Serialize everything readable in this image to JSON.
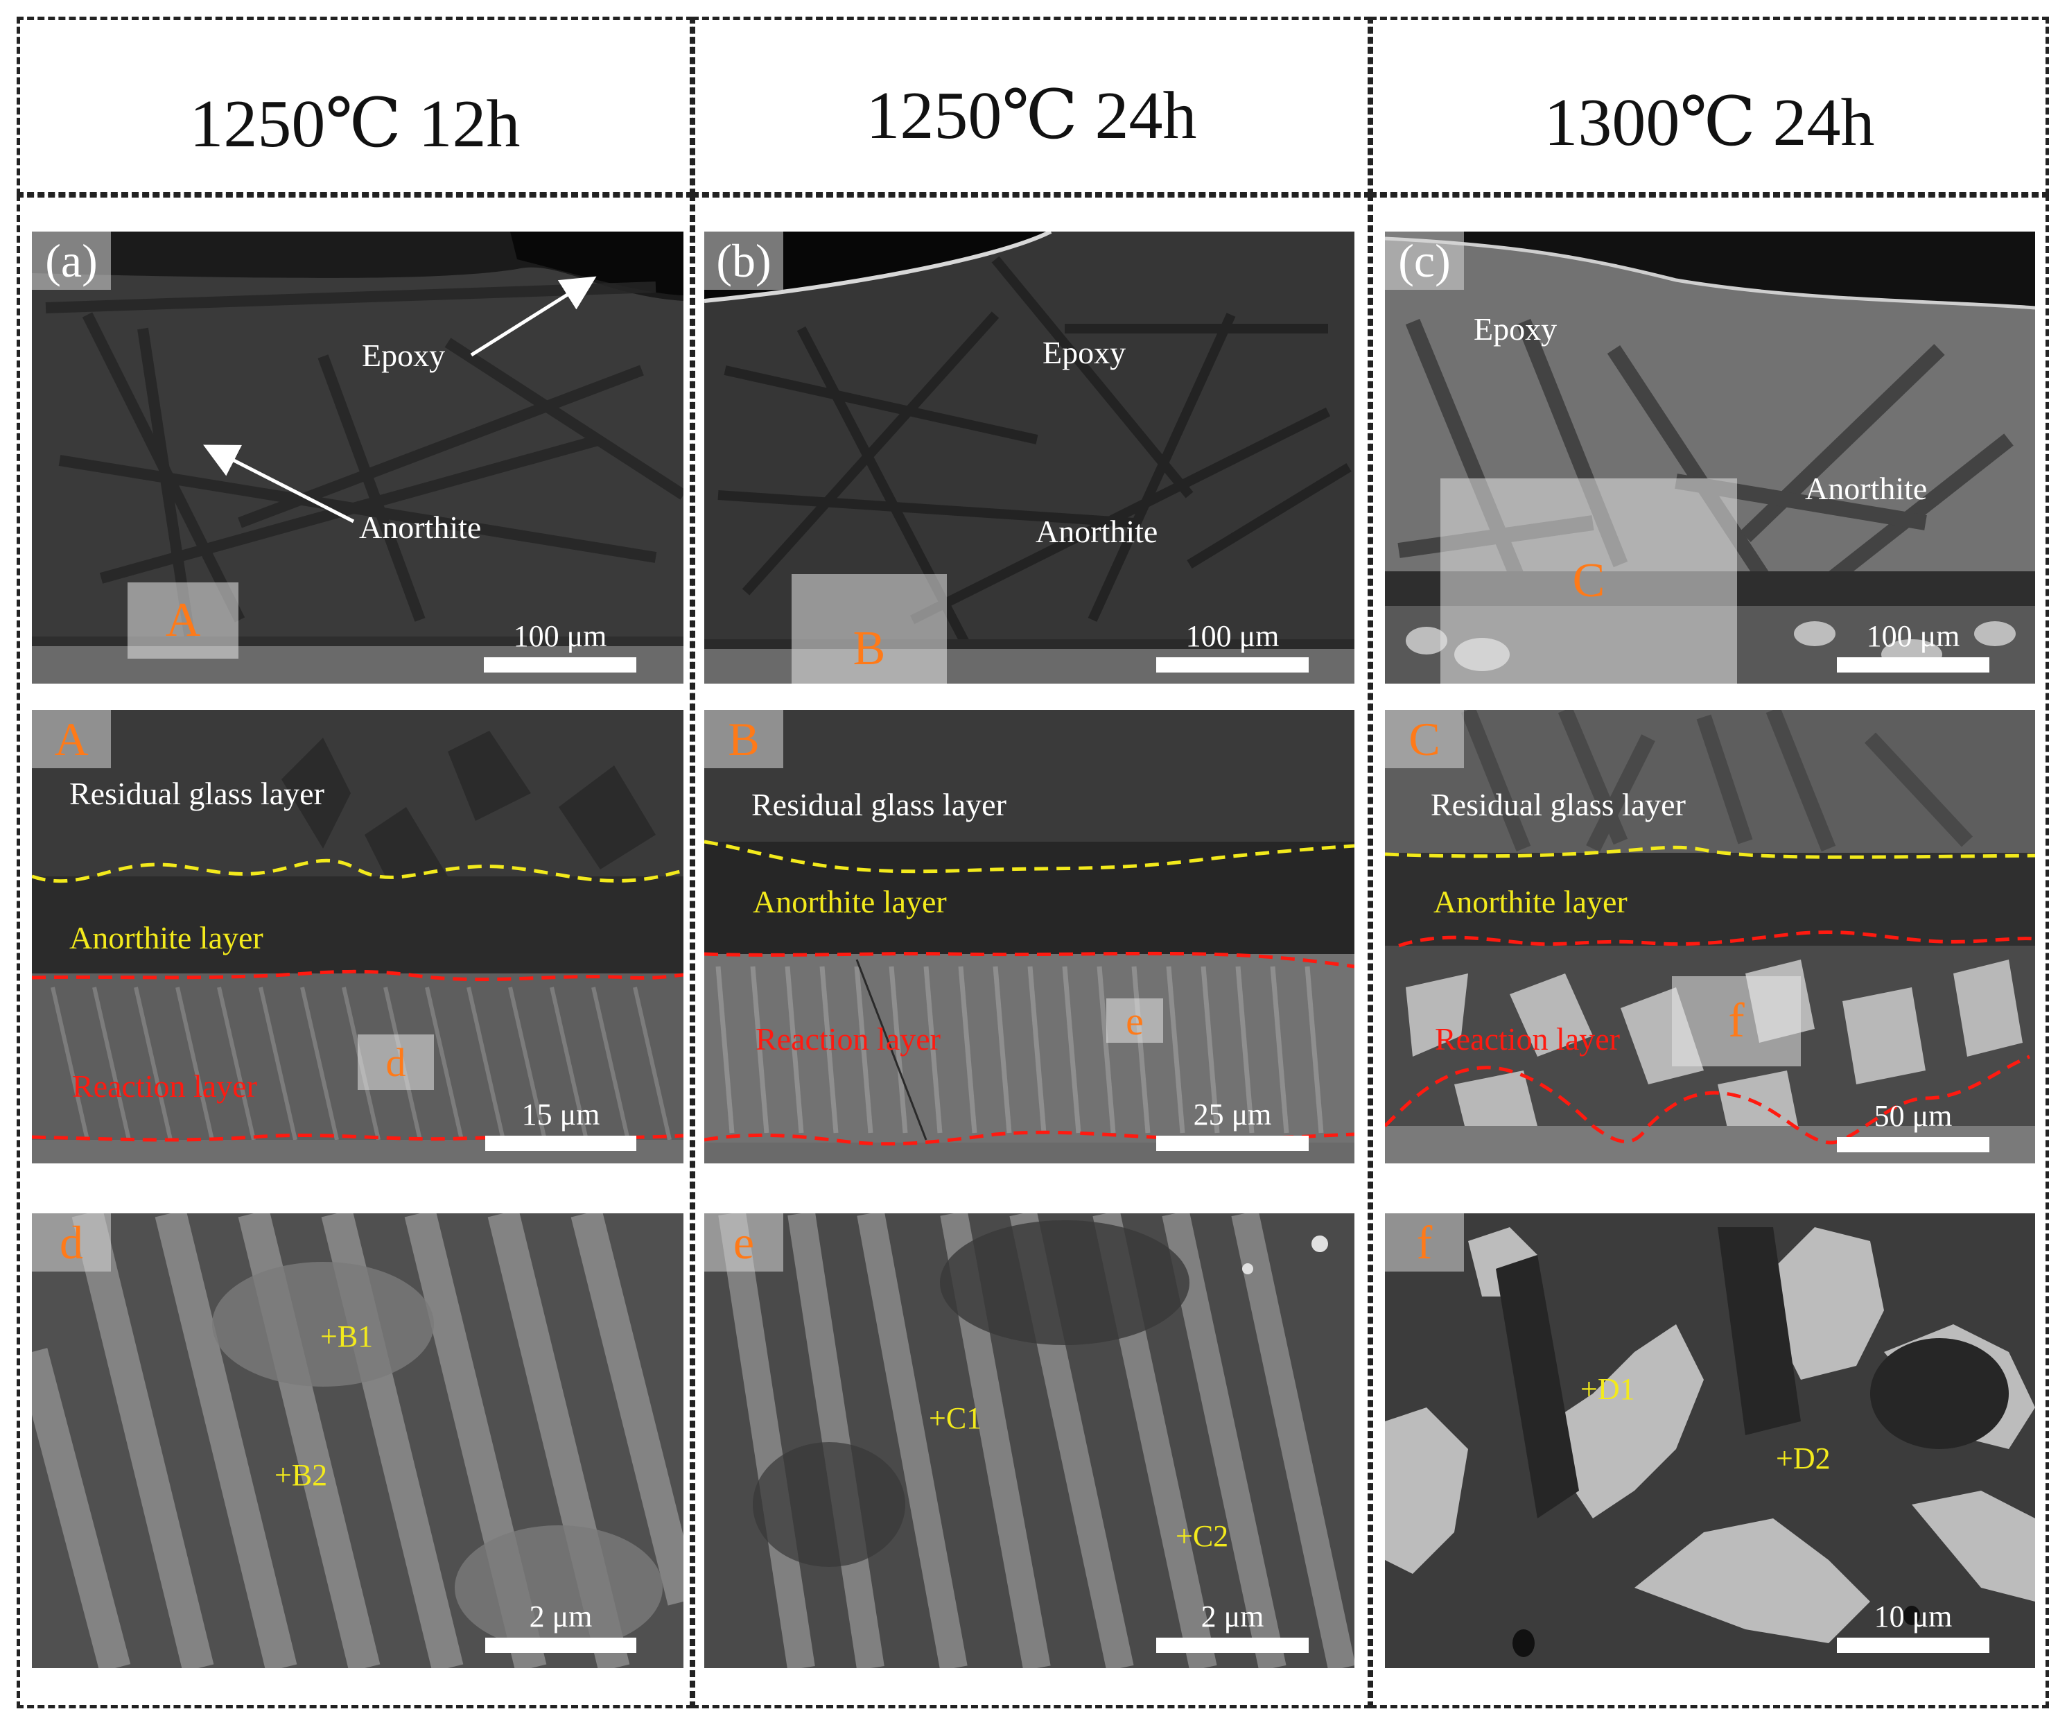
{
  "columns": [
    {
      "title": "1250℃ 12h"
    },
    {
      "title": "1250℃ 24h"
    },
    {
      "title": "1300℃ 24h"
    }
  ],
  "row1": [
    {
      "tag": "(a)",
      "epoxy": "Epoxy",
      "anorthite": "Anorthite",
      "box": "A",
      "scale": "100 μm"
    },
    {
      "tag": "(b)",
      "epoxy": "Epoxy",
      "anorthite": "Anorthite",
      "box": "B",
      "scale": "100 μm"
    },
    {
      "tag": "(c)",
      "epoxy": "Epoxy",
      "anorthite": "Anorthite",
      "box": "C",
      "scale": "100 μm"
    }
  ],
  "row2": [
    {
      "tag": "A",
      "glass": "Residual glass layer",
      "anorthite_layer": "Anorthite layer",
      "reaction": "Reaction layer",
      "box": "d",
      "scale": "15 μm"
    },
    {
      "tag": "B",
      "glass": "Residual glass layer",
      "anorthite_layer": "Anorthite layer",
      "reaction": "Reaction layer",
      "box": "e",
      "scale": "25 μm"
    },
    {
      "tag": "C",
      "glass": "Residual glass layer",
      "anorthite_layer": "Anorthite layer",
      "reaction": "Reaction layer",
      "box": "f",
      "scale": "50 μm"
    }
  ],
  "row3": [
    {
      "tag": "d",
      "points": [
        "B1",
        "B2"
      ],
      "scale": "2 μm"
    },
    {
      "tag": "e",
      "points": [
        "C1",
        "C2"
      ],
      "scale": "2 μm"
    },
    {
      "tag": "f",
      "points": [
        "D1",
        "D2"
      ],
      "scale": "10 μm"
    }
  ],
  "colors": {
    "epoxy": "#0c0c0c",
    "glass": "#3a3a3a",
    "anorthite_crystal": "#262626",
    "substrate": "#6a6a6a",
    "yellow_boundary": "#f3ea1c",
    "red_boundary": "#ff1a10",
    "tag_orange": "#ff7a18"
  }
}
